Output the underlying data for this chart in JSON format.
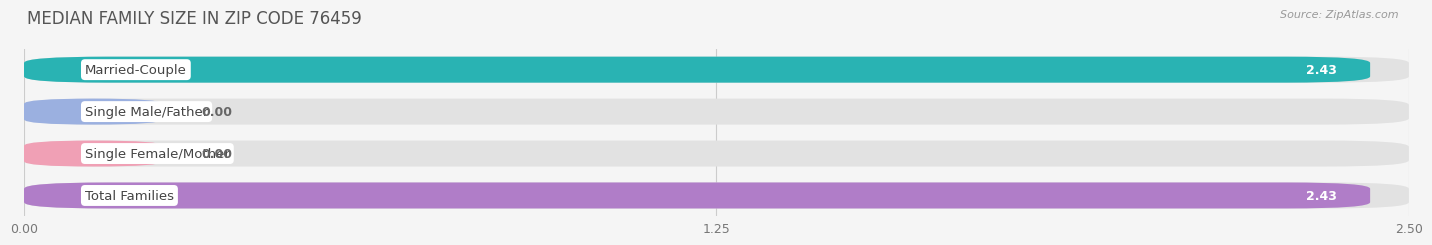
{
  "title": "MEDIAN FAMILY SIZE IN ZIP CODE 76459",
  "source": "Source: ZipAtlas.com",
  "categories": [
    "Married-Couple",
    "Single Male/Father",
    "Single Female/Mother",
    "Total Families"
  ],
  "values": [
    2.43,
    0.0,
    0.0,
    2.43
  ],
  "bar_colors": [
    "#29b3b3",
    "#9bb0e0",
    "#f0a0b5",
    "#b07dc8"
  ],
  "background_color": "#f5f5f5",
  "bar_bg_color": "#e2e2e2",
  "xlim": [
    0,
    2.5
  ],
  "xticks": [
    0.0,
    1.25,
    2.5
  ],
  "xtick_labels": [
    "0.00",
    "1.25",
    "2.50"
  ],
  "label_fontsize": 9.5,
  "title_fontsize": 12,
  "value_fontsize": 9,
  "source_fontsize": 8
}
